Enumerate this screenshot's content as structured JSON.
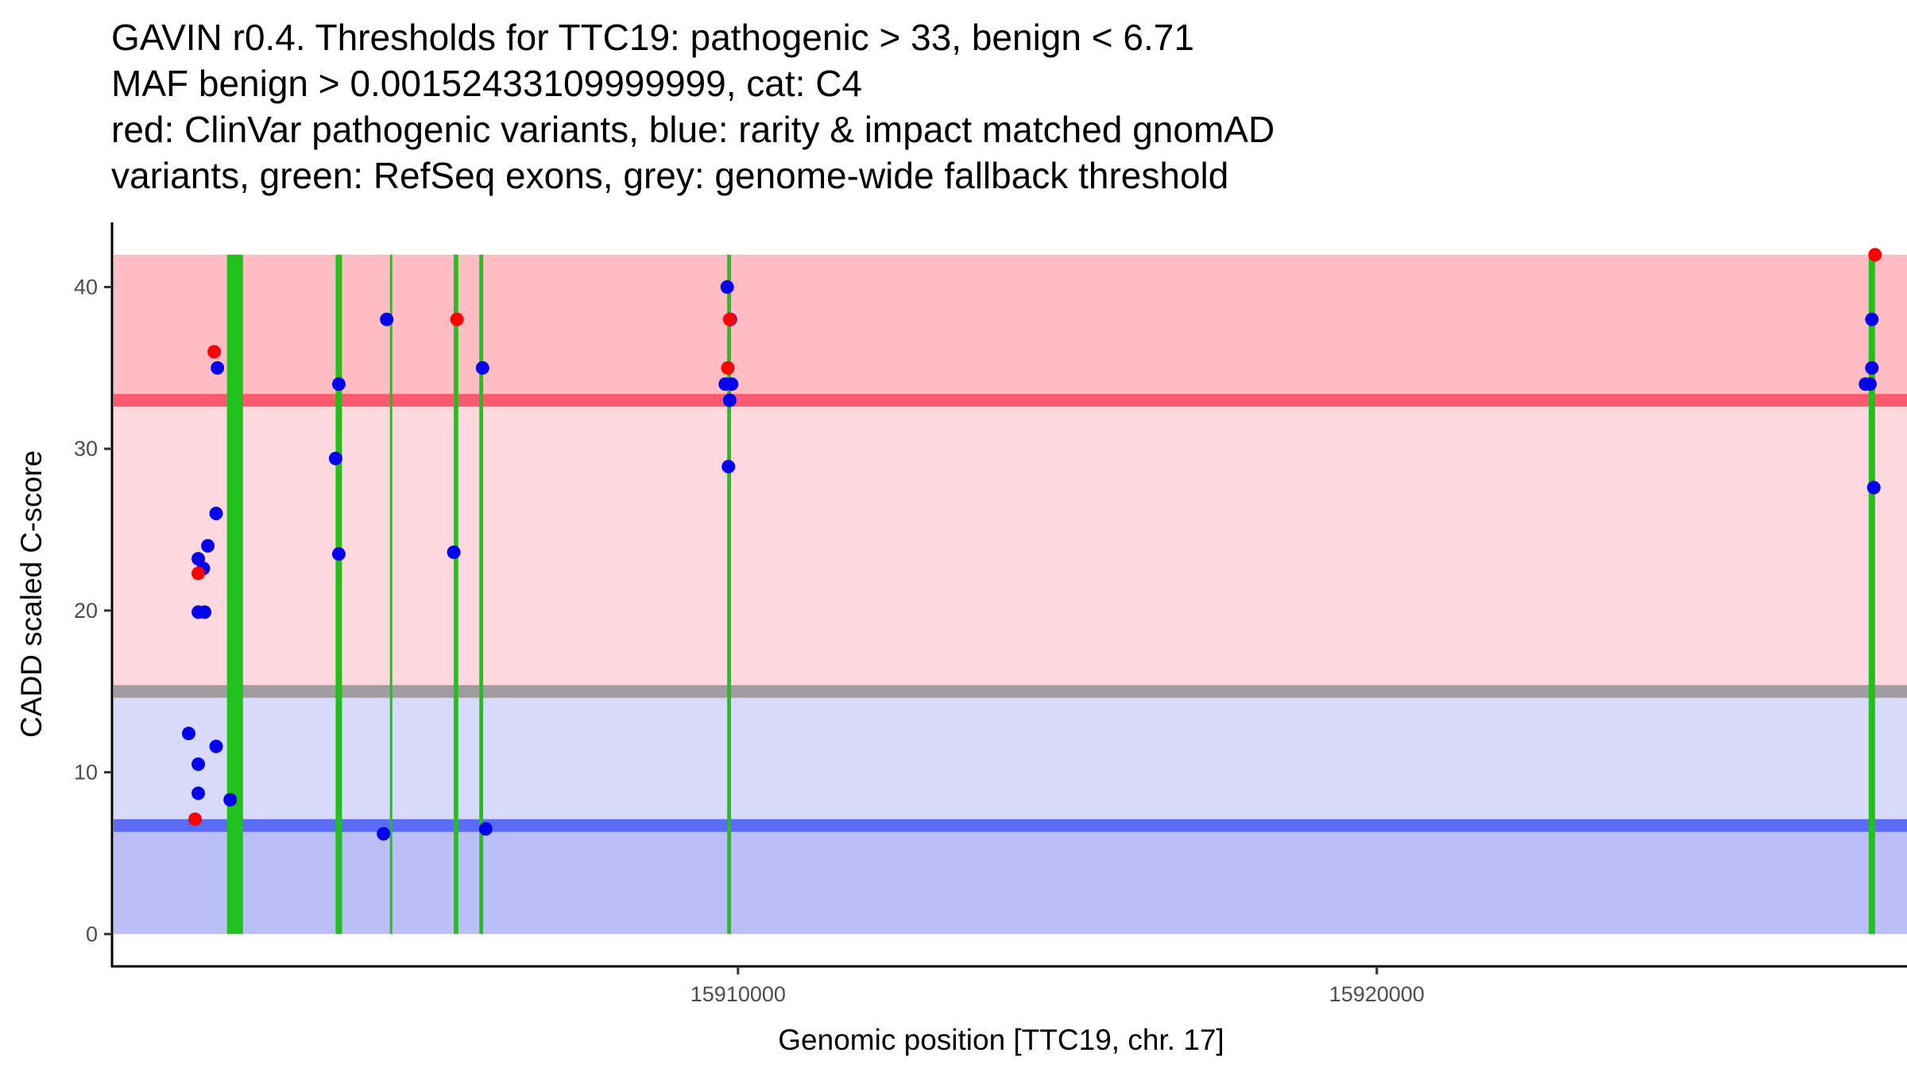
{
  "chart_data": {
    "type": "scatter",
    "title_lines": [
      "GAVIN r0.4. Thresholds for TTC19: pathogenic > 33, benign < 6.71",
      "MAF benign > 0.00152433109999999, cat: C4",
      "red: ClinVar pathogenic variants, blue: rarity & impact matched gnomAD",
      "variants, green: RefSeq exons, grey: genome-wide fallback threshold"
    ],
    "xlabel": "Genomic position [TTC19, chr. 17]",
    "ylabel": "CADD scaled C-score",
    "xlim": [
      15900200,
      15928300
    ],
    "ylim": [
      -2,
      44
    ],
    "x_ticks": [
      15910000,
      15920000
    ],
    "x_tick_labels": [
      "15910000",
      "15920000"
    ],
    "y_ticks": [
      0,
      10,
      20,
      30,
      40
    ],
    "y_tick_labels": [
      "0",
      "10",
      "20",
      "30",
      "40"
    ],
    "thresholds": {
      "pathogenic": 33,
      "benign": 6.71,
      "genome_wide": 15,
      "max": 42
    },
    "colors": {
      "pathogenic_band_upper": "#ffbcc2",
      "pathogenic_band_lower": "#ffd8dd",
      "pathogenic_line": "#fa5a6e",
      "genome_wide_line": "#a09ca0",
      "benign_band_upper": "#d8dafc",
      "benign_band_lower": "#babef9",
      "benign_line": "#5a6cf5",
      "exon": "#22c01a",
      "clinvar": "#ff0000",
      "gnomad": "#0000ee"
    },
    "exons": [
      {
        "start": 15902000,
        "end": 15902250
      },
      {
        "start": 15903700,
        "end": 15903800
      },
      {
        "start": 15904550,
        "end": 15904580
      },
      {
        "start": 15905550,
        "end": 15905620
      },
      {
        "start": 15905950,
        "end": 15906010
      },
      {
        "start": 15909830,
        "end": 15909890
      },
      {
        "start": 15927700,
        "end": 15927800
      }
    ],
    "series": [
      {
        "name": "gnomAD",
        "points": [
          {
            "x": 15901400,
            "y": 12.4
          },
          {
            "x": 15901550,
            "y": 23.2
          },
          {
            "x": 15901550,
            "y": 19.9
          },
          {
            "x": 15901550,
            "y": 10.5
          },
          {
            "x": 15901550,
            "y": 8.7
          },
          {
            "x": 15901630,
            "y": 22.6
          },
          {
            "x": 15901650,
            "y": 19.9
          },
          {
            "x": 15901700,
            "y": 24.0
          },
          {
            "x": 15901850,
            "y": 35.0
          },
          {
            "x": 15901830,
            "y": 26.0
          },
          {
            "x": 15901830,
            "y": 11.6
          },
          {
            "x": 15902050,
            "y": 8.3
          },
          {
            "x": 15903700,
            "y": 29.4
          },
          {
            "x": 15903750,
            "y": 34.0
          },
          {
            "x": 15903750,
            "y": 23.5
          },
          {
            "x": 15904500,
            "y": 38.0
          },
          {
            "x": 15904450,
            "y": 6.2
          },
          {
            "x": 15905550,
            "y": 23.6
          },
          {
            "x": 15906000,
            "y": 35.0
          },
          {
            "x": 15906050,
            "y": 6.5
          },
          {
            "x": 15909830,
            "y": 40.0
          },
          {
            "x": 15909880,
            "y": 38.0
          },
          {
            "x": 15909800,
            "y": 34.0
          },
          {
            "x": 15909900,
            "y": 34.0
          },
          {
            "x": 15909870,
            "y": 33.0
          },
          {
            "x": 15909850,
            "y": 28.9
          },
          {
            "x": 15927650,
            "y": 34.0
          },
          {
            "x": 15927720,
            "y": 34.0
          },
          {
            "x": 15927750,
            "y": 35.0
          },
          {
            "x": 15927750,
            "y": 38.0
          },
          {
            "x": 15927780,
            "y": 27.6
          }
        ]
      },
      {
        "name": "ClinVar",
        "points": [
          {
            "x": 15901500,
            "y": 7.1
          },
          {
            "x": 15901550,
            "y": 22.3
          },
          {
            "x": 15901800,
            "y": 36.0
          },
          {
            "x": 15905600,
            "y": 38.0
          },
          {
            "x": 15909870,
            "y": 38.0
          },
          {
            "x": 15909840,
            "y": 35.0
          },
          {
            "x": 15927800,
            "y": 42.0
          }
        ]
      }
    ]
  }
}
